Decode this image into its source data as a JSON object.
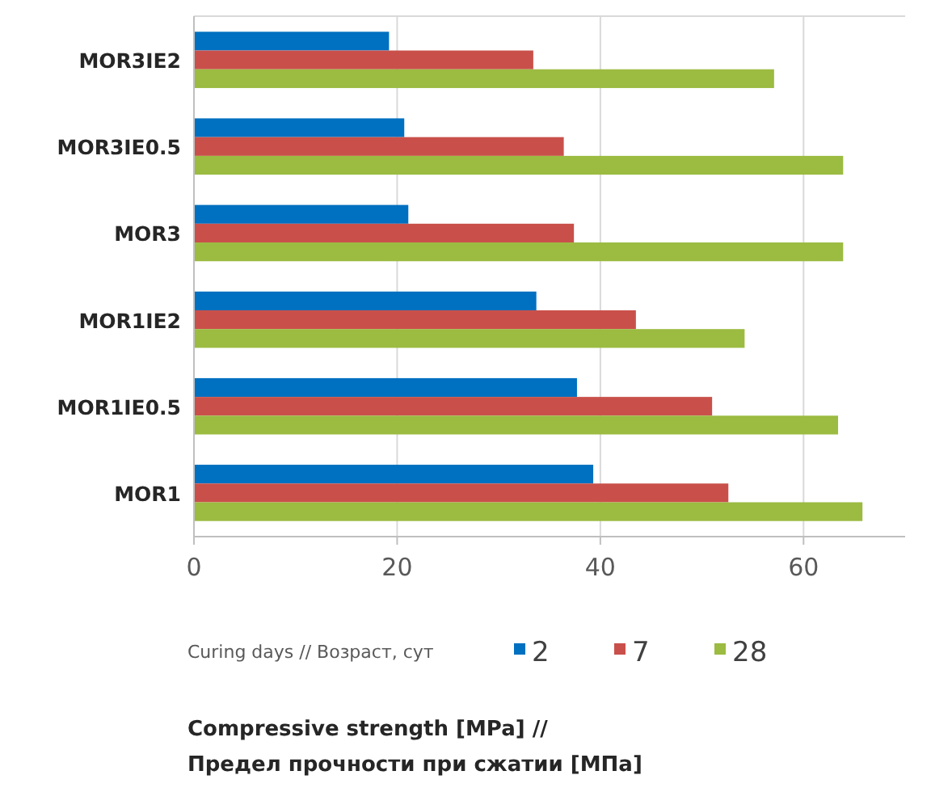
{
  "chart_data": {
    "type": "bar",
    "orientation": "horizontal",
    "categories": [
      "MOR3IE2",
      "MOR3IE0.5",
      "MOR3",
      "MOR1IE2",
      "MOR1IE0.5",
      "MOR1"
    ],
    "series": [
      {
        "name": "2",
        "color": "#0070c0",
        "values": [
          19.2,
          20.7,
          21.1,
          33.7,
          37.7,
          39.3
        ]
      },
      {
        "name": "7",
        "color": "#c9504a",
        "values": [
          33.4,
          36.4,
          37.4,
          43.5,
          51.0,
          52.6
        ]
      },
      {
        "name": "28",
        "color": "#9bbb41",
        "values": [
          57.1,
          63.9,
          63.9,
          54.2,
          63.4,
          65.8
        ]
      }
    ],
    "xlim": [
      0,
      70
    ],
    "xticks": [
      0,
      20,
      40,
      60
    ],
    "grid": "x",
    "legend": "bottom",
    "legend_title": "Curing days // Возраст, сут",
    "annotations": [
      "Compressive strength [MPa] //\nПредел прочности при сжатии [МПа]"
    ]
  }
}
